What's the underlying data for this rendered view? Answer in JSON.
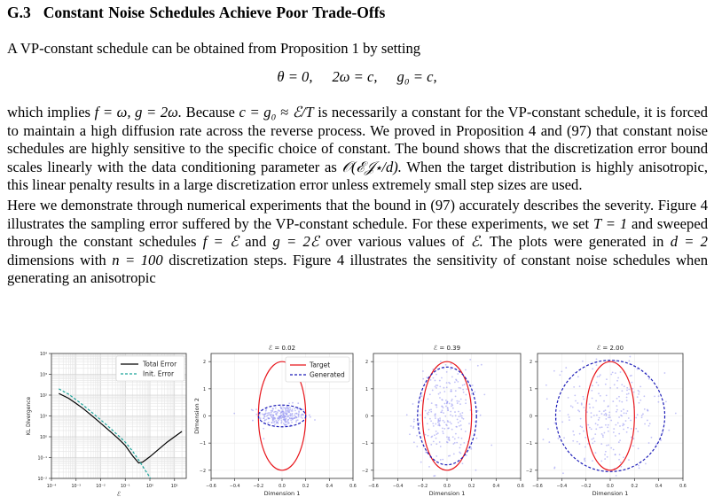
{
  "heading": {
    "number": "G.3",
    "title": "Constant Noise Schedules Achieve Poor Trade-Offs"
  },
  "p1": "A VP-constant schedule can be obtained from Proposition 1 by setting",
  "equation": {
    "part1": "θ = 0,",
    "part2": "2ω = c,",
    "part3": "g₀ = c,"
  },
  "p2": {
    "a": "which implies",
    "b": "f = ω, g = 2ω.",
    "c": "Because",
    "d": "c = g₀ ≈ ℰ/T",
    "e": "is necessarily a constant for the VP-constant schedule, it is forced to maintain a high diffusion rate across the reverse process. We proved in Proposition 4 and (97) that constant noise schedules are highly sensitive to the specific choice of constant. The bound shows that the discretization error bound scales linearly with the data conditioning parameter as",
    "f": "𝒪(ℰ𝒥⋆/d).",
    "g": "When the target distribution is highly anisotropic, this linear penalty results in a large discretization error unless extremely small step sizes are used."
  },
  "p3": {
    "a": "Here we demonstrate through numerical experiments that the bound in (97) accurately describes the severity. Figure 4 illustrates the sampling error suffered by the VP-constant schedule. For these experiments, we set",
    "b": "T = 1",
    "c": "and sweeped through the constant schedules",
    "d": "f = ℰ",
    "e": "and",
    "f": "g = 2ℰ",
    "g": "over various values of",
    "h": "ℰ.",
    "i": "The plots were generated in",
    "j": "d = 2",
    "k": "dimensions with",
    "l": "n = 100",
    "m": "discretization steps. Figure 4 illustrates the sensitivity of constant noise schedules when generating an anisotropic"
  },
  "colors": {
    "total": "#000000",
    "init": "#1aa39a",
    "target": "#e8151b",
    "generated": "#1c1cb8",
    "scatter": "#8f8ff0"
  },
  "chart_data": [
    {
      "type": "line",
      "xscale": "log",
      "yscale": "log",
      "xlabel": "ℰ",
      "ylabel": "KL Divergence",
      "xlim": [
        0.0001,
        30
      ],
      "ylim": [
        0.01,
        10000
      ],
      "xticks": [
        "10⁻⁴",
        "10⁻³",
        "10⁻²",
        "10⁻¹",
        "10⁰",
        "10¹"
      ],
      "yticks": [
        "10⁻²",
        "10⁻¹",
        "10⁰",
        "10¹",
        "10²",
        "10³",
        "10⁴"
      ],
      "grid": true,
      "legend": "top-right",
      "series": [
        {
          "name": "Total Error",
          "style": "solid",
          "x": [
            0.0002,
            0.0005,
            0.001,
            0.002,
            0.005,
            0.01,
            0.02,
            0.05,
            0.1,
            0.2,
            0.35,
            0.5,
            0.7,
            1,
            2,
            5,
            10,
            20
          ],
          "y": [
            120,
            70,
            40,
            22,
            9,
            4.5,
            2.2,
            0.85,
            0.38,
            0.12,
            0.055,
            0.06,
            0.08,
            0.11,
            0.22,
            0.55,
            1.0,
            1.8
          ]
        },
        {
          "name": "Init. Error",
          "style": "dashed",
          "x": [
            0.0002,
            0.0005,
            0.001,
            0.002,
            0.005,
            0.01,
            0.02,
            0.05,
            0.1,
            0.2,
            0.4,
            0.6,
            0.8,
            1.0,
            1.3
          ],
          "y": [
            200,
            110,
            60,
            32,
            13,
            6.5,
            3.2,
            1.2,
            0.55,
            0.2,
            0.06,
            0.028,
            0.017,
            0.011,
            0.0065
          ]
        }
      ]
    },
    {
      "type": "scatter",
      "title": "ℰ = 0.02",
      "xlabel": "Dimension 1",
      "ylabel": "Dimension 2",
      "xlim": [
        -0.6,
        0.6
      ],
      "ylim": [
        -2.3,
        2.3
      ],
      "xticks": [
        -0.6,
        -0.4,
        -0.2,
        0.0,
        0.2,
        0.4,
        0.6
      ],
      "yticks": [
        -2,
        -1,
        0,
        1,
        2
      ],
      "legend": "top-right",
      "series": [
        {
          "name": "Target",
          "shape": "ellipse",
          "rx": 0.2,
          "ry": 2
        },
        {
          "name": "Generated",
          "shape": "ellipse",
          "rx": 0.2,
          "ry": 0.4,
          "cluster_sx": 0.1,
          "cluster_sy": 0.2
        }
      ]
    },
    {
      "type": "scatter",
      "title": "ℰ = 0.39",
      "xlabel": "Dimension 1",
      "xlim": [
        -0.6,
        0.6
      ],
      "ylim": [
        -2.3,
        2.3
      ],
      "xticks": [
        -0.6,
        -0.4,
        -0.2,
        0.0,
        0.2,
        0.4,
        0.6
      ],
      "yticks": [
        -2,
        -1,
        0,
        1,
        2
      ],
      "series": [
        {
          "name": "Target",
          "shape": "ellipse",
          "rx": 0.2,
          "ry": 2
        },
        {
          "name": "Generated",
          "shape": "ellipse",
          "rx": 0.24,
          "ry": 1.8,
          "cluster_sx": 0.13,
          "cluster_sy": 0.95
        }
      ]
    },
    {
      "type": "scatter",
      "title": "ℰ = 2.00",
      "xlabel": "Dimension 1",
      "xlim": [
        -0.6,
        0.6
      ],
      "ylim": [
        -2.3,
        2.3
      ],
      "xticks": [
        -0.6,
        -0.4,
        -0.2,
        0.0,
        0.2,
        0.4,
        0.6
      ],
      "yticks": [
        -2,
        -1,
        0,
        1,
        2
      ],
      "series": [
        {
          "name": "Target",
          "shape": "ellipse",
          "rx": 0.2,
          "ry": 2
        },
        {
          "name": "Generated",
          "shape": "ellipse",
          "rx": 0.45,
          "ry": 2.05,
          "cluster_sx": 0.22,
          "cluster_sy": 1.0
        }
      ]
    }
  ]
}
